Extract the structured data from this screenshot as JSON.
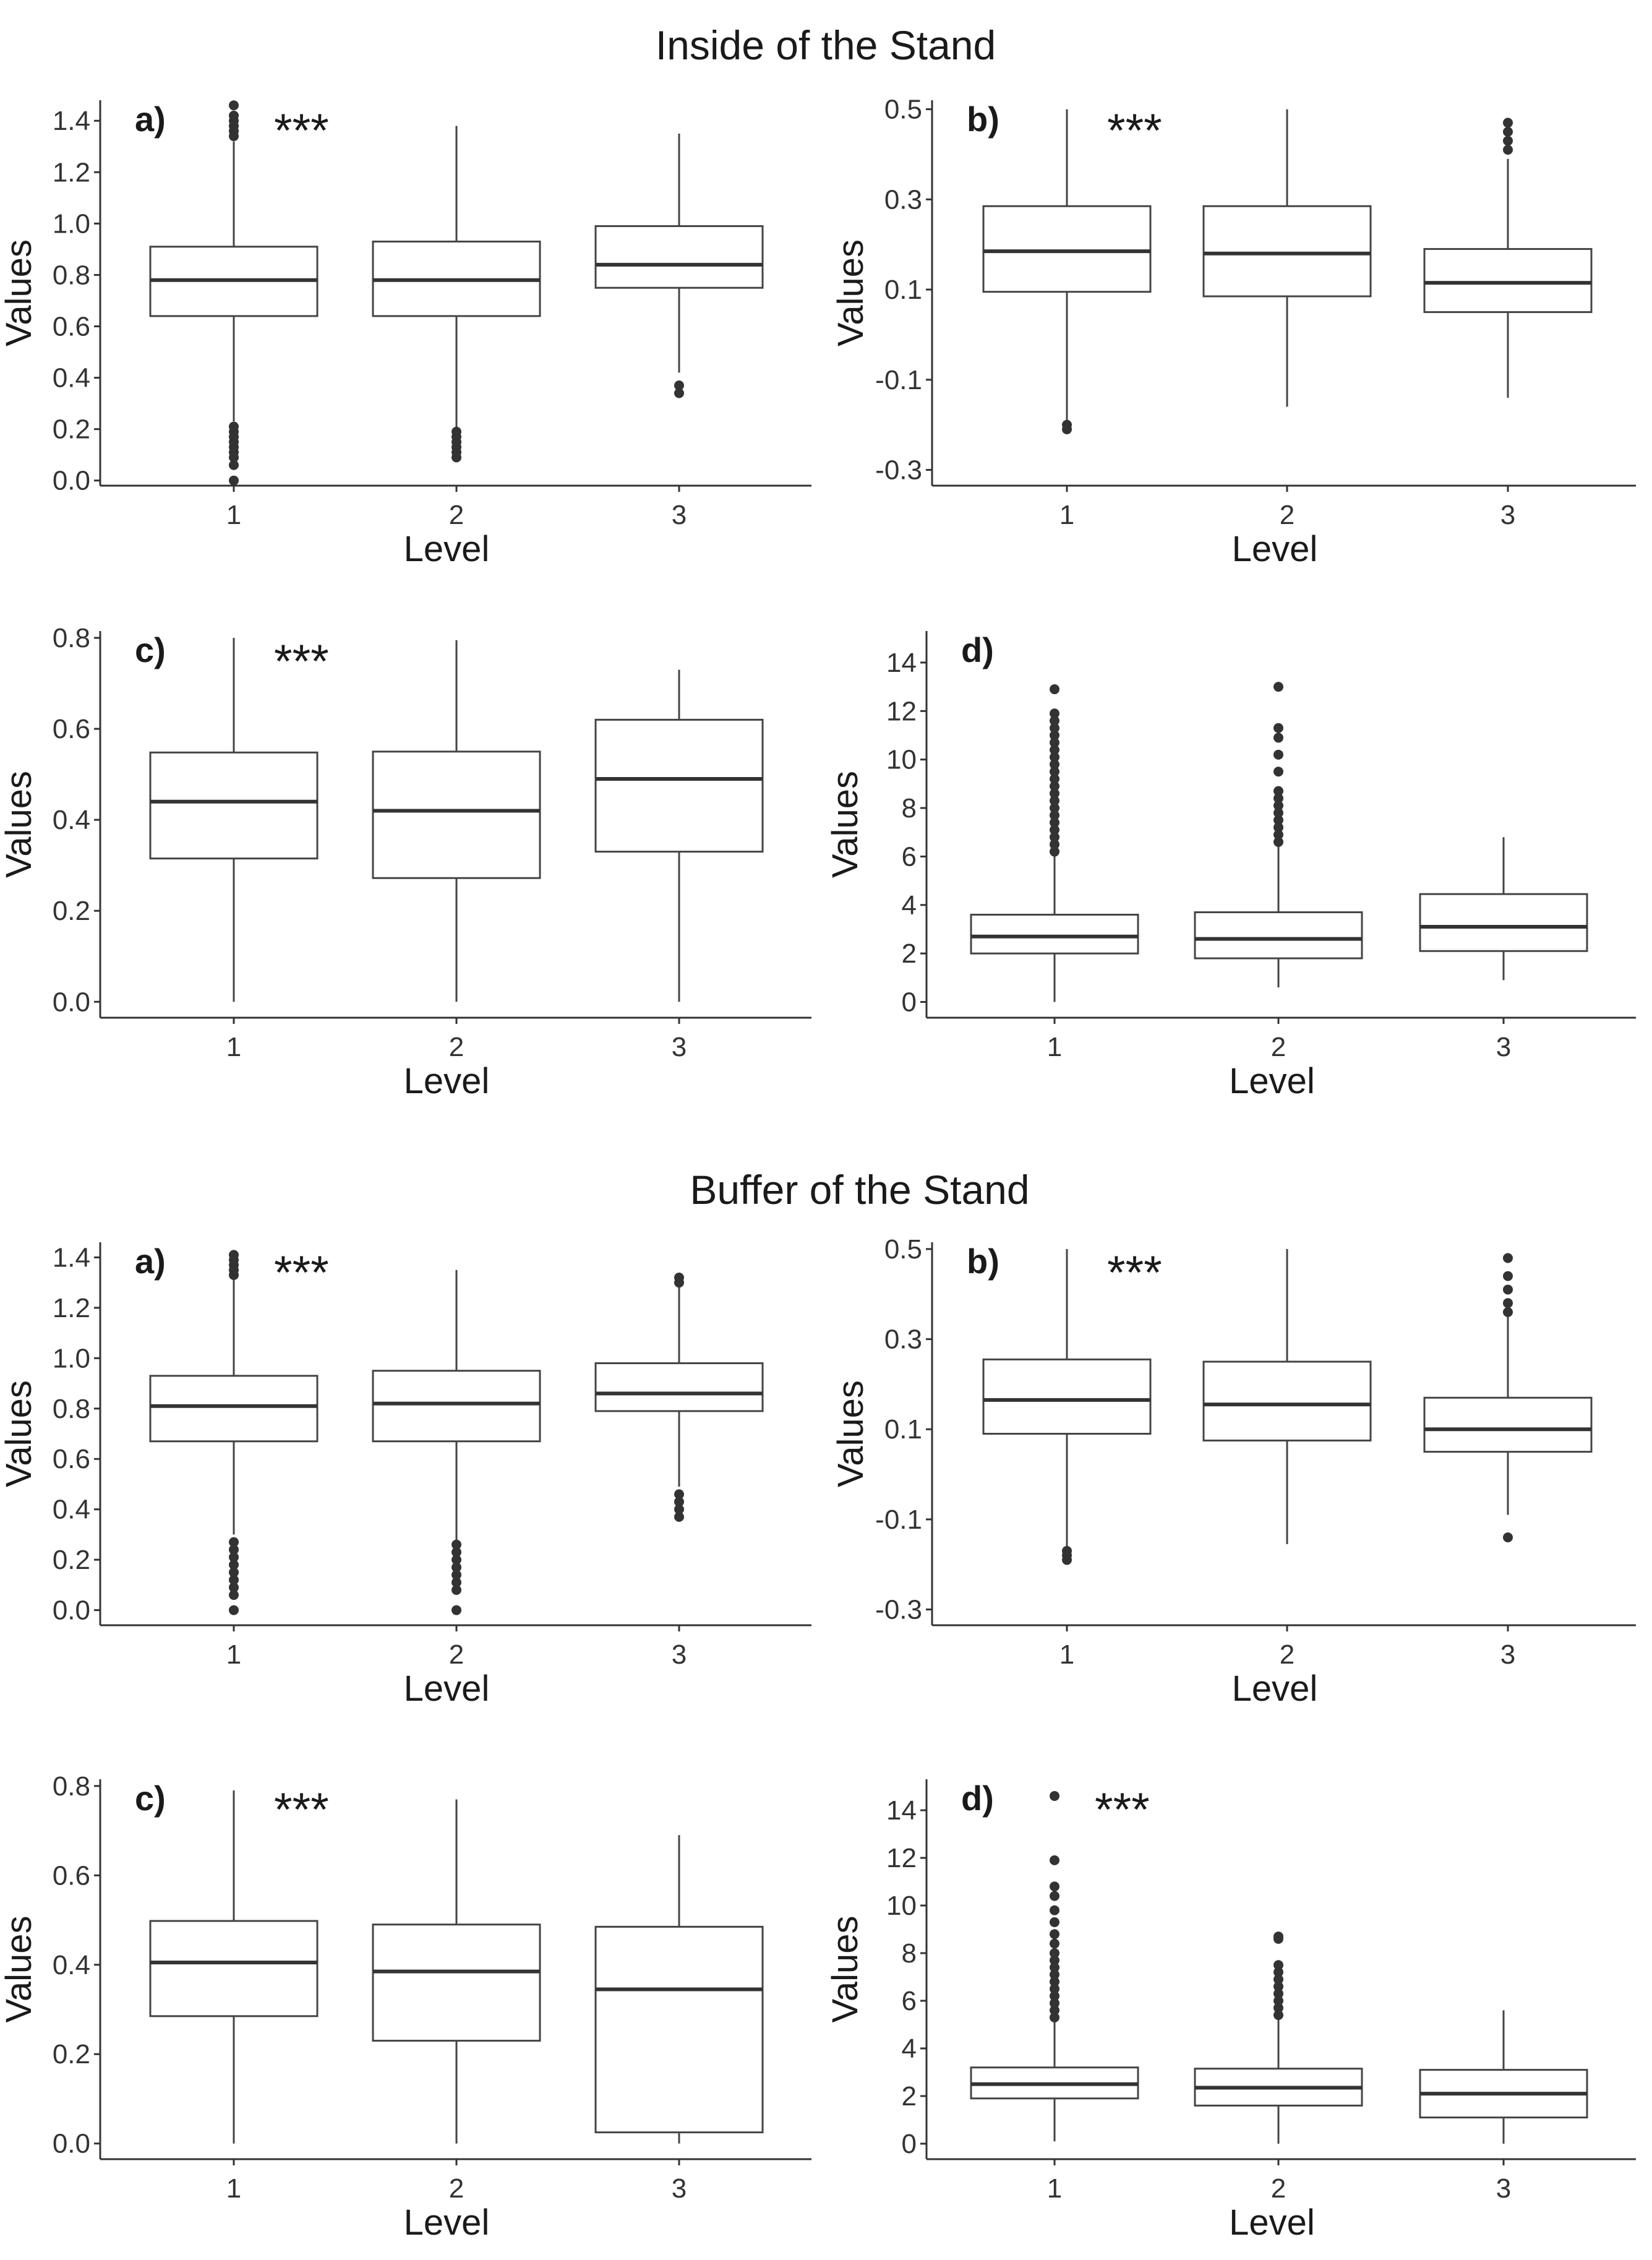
{
  "titles": {
    "inside": "Inside of the Stand",
    "buffer": "Buffer of the Stand"
  },
  "chart_data": [
    {
      "id": "inside-a",
      "section": "Inside of the Stand",
      "type": "boxplot",
      "panel_label": "a)",
      "significance": "***",
      "xlabel": "Level",
      "ylabel": "Values",
      "categories": [
        "1",
        "2",
        "3"
      ],
      "ylim": [
        -0.02,
        1.48
      ],
      "yticks": [
        0.0,
        0.2,
        0.4,
        0.6,
        0.8,
        1.0,
        1.2,
        1.4
      ],
      "ytick_labels": [
        "0.0",
        "0.2",
        "0.4",
        "0.6",
        "0.8",
        "1.0",
        "1.2",
        "1.4"
      ],
      "boxes": [
        {
          "level": "1",
          "whisker_low": 0.23,
          "q1": 0.64,
          "median": 0.78,
          "q3": 0.91,
          "whisker_high": 1.32,
          "outliers": [
            0.0,
            0.06,
            0.09,
            0.11,
            0.13,
            0.15,
            0.17,
            0.19,
            0.21,
            1.34,
            1.36,
            1.38,
            1.4,
            1.42,
            1.46
          ]
        },
        {
          "level": "2",
          "whisker_low": 0.2,
          "q1": 0.64,
          "median": 0.78,
          "q3": 0.93,
          "whisker_high": 1.38,
          "outliers": [
            0.09,
            0.11,
            0.13,
            0.15,
            0.17,
            0.19
          ]
        },
        {
          "level": "3",
          "whisker_low": 0.42,
          "q1": 0.75,
          "median": 0.84,
          "q3": 0.99,
          "whisker_high": 1.35,
          "outliers": [
            0.34,
            0.37
          ]
        }
      ]
    },
    {
      "id": "inside-b",
      "section": "Inside of the Stand",
      "type": "boxplot",
      "panel_label": "b)",
      "significance": "***",
      "xlabel": "Level",
      "ylabel": "Values",
      "categories": [
        "1",
        "2",
        "3"
      ],
      "ylim": [
        -0.335,
        0.52
      ],
      "yticks": [
        -0.3,
        -0.1,
        0.1,
        0.3,
        0.5
      ],
      "ytick_labels": [
        "-0.3",
        "-0.1",
        "0.1",
        "0.3",
        "0.5"
      ],
      "boxes": [
        {
          "level": "1",
          "whisker_low": -0.19,
          "q1": 0.095,
          "median": 0.185,
          "q3": 0.285,
          "whisker_high": 0.5,
          "outliers": [
            -0.2,
            -0.21
          ]
        },
        {
          "level": "2",
          "whisker_low": -0.16,
          "q1": 0.085,
          "median": 0.18,
          "q3": 0.285,
          "whisker_high": 0.5,
          "outliers": []
        },
        {
          "level": "3",
          "whisker_low": -0.14,
          "q1": 0.05,
          "median": 0.115,
          "q3": 0.19,
          "whisker_high": 0.39,
          "outliers": [
            0.41,
            0.43,
            0.45,
            0.47
          ]
        }
      ]
    },
    {
      "id": "inside-c",
      "section": "Inside of the Stand",
      "type": "boxplot",
      "panel_label": "c)",
      "significance": "***",
      "xlabel": "Level",
      "ylabel": "Values",
      "categories": [
        "1",
        "2",
        "3"
      ],
      "ylim": [
        -0.035,
        0.815
      ],
      "yticks": [
        0.0,
        0.2,
        0.4,
        0.6,
        0.8
      ],
      "ytick_labels": [
        "0.0",
        "0.2",
        "0.4",
        "0.6",
        "0.8"
      ],
      "boxes": [
        {
          "level": "1",
          "whisker_low": 0.0,
          "q1": 0.315,
          "median": 0.44,
          "q3": 0.548,
          "whisker_high": 0.8,
          "outliers": []
        },
        {
          "level": "2",
          "whisker_low": 0.0,
          "q1": 0.272,
          "median": 0.42,
          "q3": 0.55,
          "whisker_high": 0.795,
          "outliers": []
        },
        {
          "level": "3",
          "whisker_low": 0.0,
          "q1": 0.33,
          "median": 0.49,
          "q3": 0.62,
          "whisker_high": 0.73,
          "outliers": []
        }
      ]
    },
    {
      "id": "inside-d",
      "section": "Inside of the Stand",
      "type": "boxplot",
      "panel_label": "d)",
      "significance": "",
      "xlabel": "Level",
      "ylabel": "Values",
      "categories": [
        "1",
        "2",
        "3"
      ],
      "ylim": [
        -0.65,
        15.3
      ],
      "yticks": [
        0,
        2,
        4,
        6,
        8,
        10,
        12,
        14
      ],
      "ytick_labels": [
        "0",
        "2",
        "4",
        "6",
        "8",
        "10",
        "12",
        "14"
      ],
      "boxes": [
        {
          "level": "1",
          "whisker_low": 0.0,
          "q1": 2.0,
          "median": 2.7,
          "q3": 3.6,
          "whisker_high": 6.1,
          "outliers": [
            6.2,
            6.5,
            6.8,
            7.1,
            7.4,
            7.7,
            8.0,
            8.3,
            8.6,
            8.9,
            9.2,
            9.5,
            9.8,
            10.1,
            10.4,
            10.7,
            11.0,
            11.3,
            11.6,
            11.9,
            12.9
          ]
        },
        {
          "level": "2",
          "whisker_low": 0.6,
          "q1": 1.8,
          "median": 2.6,
          "q3": 3.7,
          "whisker_high": 6.5,
          "outliers": [
            6.6,
            6.9,
            7.2,
            7.5,
            7.8,
            8.1,
            8.4,
            8.7,
            9.5,
            10.2,
            10.9,
            11.3,
            13.0
          ]
        },
        {
          "level": "3",
          "whisker_low": 0.9,
          "q1": 2.1,
          "median": 3.1,
          "q3": 4.45,
          "whisker_high": 6.8,
          "outliers": []
        }
      ]
    },
    {
      "id": "buffer-a",
      "section": "Buffer of the Stand",
      "type": "boxplot",
      "panel_label": "a)",
      "significance": "***",
      "xlabel": "Level",
      "ylabel": "Values",
      "categories": [
        "1",
        "2",
        "3"
      ],
      "ylim": [
        -0.06,
        1.46
      ],
      "yticks": [
        0.0,
        0.2,
        0.4,
        0.6,
        0.8,
        1.0,
        1.2,
        1.4
      ],
      "ytick_labels": [
        "0.0",
        "0.2",
        "0.4",
        "0.6",
        "0.8",
        "1.0",
        "1.2",
        "1.4"
      ],
      "boxes": [
        {
          "level": "1",
          "whisker_low": 0.3,
          "q1": 0.67,
          "median": 0.81,
          "q3": 0.93,
          "whisker_high": 1.32,
          "outliers": [
            0.0,
            0.06,
            0.09,
            0.12,
            0.15,
            0.18,
            0.21,
            0.24,
            0.27,
            1.33,
            1.35,
            1.37,
            1.39,
            1.41
          ]
        },
        {
          "level": "2",
          "whisker_low": 0.27,
          "q1": 0.67,
          "median": 0.82,
          "q3": 0.95,
          "whisker_high": 1.35,
          "outliers": [
            0.0,
            0.08,
            0.11,
            0.14,
            0.17,
            0.2,
            0.23,
            0.26
          ]
        },
        {
          "level": "3",
          "whisker_low": 0.49,
          "q1": 0.79,
          "median": 0.86,
          "q3": 0.98,
          "whisker_high": 1.29,
          "outliers": [
            0.37,
            0.4,
            0.43,
            0.46,
            1.3,
            1.32
          ]
        }
      ]
    },
    {
      "id": "buffer-b",
      "section": "Buffer of the Stand",
      "type": "boxplot",
      "panel_label": "b)",
      "significance": "***",
      "xlabel": "Level",
      "ylabel": "Values",
      "categories": [
        "1",
        "2",
        "3"
      ],
      "ylim": [
        -0.335,
        0.515
      ],
      "yticks": [
        -0.3,
        -0.1,
        0.1,
        0.3,
        0.5
      ],
      "ytick_labels": [
        "-0.3",
        "-0.1",
        "0.1",
        "0.3",
        "0.5"
      ],
      "boxes": [
        {
          "level": "1",
          "whisker_low": -0.16,
          "q1": 0.09,
          "median": 0.165,
          "q3": 0.255,
          "whisker_high": 0.5,
          "outliers": [
            -0.17,
            -0.18,
            -0.19
          ]
        },
        {
          "level": "2",
          "whisker_low": -0.155,
          "q1": 0.075,
          "median": 0.155,
          "q3": 0.25,
          "whisker_high": 0.5,
          "outliers": []
        },
        {
          "level": "3",
          "whisker_low": -0.09,
          "q1": 0.05,
          "median": 0.1,
          "q3": 0.17,
          "whisker_high": 0.35,
          "outliers": [
            -0.14,
            0.36,
            0.38,
            0.41,
            0.44,
            0.48
          ]
        }
      ]
    },
    {
      "id": "buffer-c",
      "section": "Buffer of the Stand",
      "type": "boxplot",
      "panel_label": "c)",
      "significance": "***",
      "xlabel": "Level",
      "ylabel": "Values",
      "categories": [
        "1",
        "2",
        "3"
      ],
      "ylim": [
        -0.035,
        0.815
      ],
      "yticks": [
        0.0,
        0.2,
        0.4,
        0.6,
        0.8
      ],
      "ytick_labels": [
        "0.0",
        "0.2",
        "0.4",
        "0.6",
        "0.8"
      ],
      "boxes": [
        {
          "level": "1",
          "whisker_low": 0.0,
          "q1": 0.285,
          "median": 0.405,
          "q3": 0.498,
          "whisker_high": 0.79,
          "outliers": []
        },
        {
          "level": "2",
          "whisker_low": 0.0,
          "q1": 0.23,
          "median": 0.385,
          "q3": 0.49,
          "whisker_high": 0.77,
          "outliers": []
        },
        {
          "level": "3",
          "whisker_low": 0.0,
          "q1": 0.025,
          "median": 0.345,
          "q3": 0.485,
          "whisker_high": 0.69,
          "outliers": []
        }
      ]
    },
    {
      "id": "buffer-d",
      "section": "Buffer of the Stand",
      "type": "boxplot",
      "panel_label": "d)",
      "significance": "***",
      "xlabel": "Level",
      "ylabel": "Values",
      "categories": [
        "1",
        "2",
        "3"
      ],
      "ylim": [
        -0.65,
        15.3
      ],
      "yticks": [
        0,
        2,
        4,
        6,
        8,
        10,
        12,
        14
      ],
      "ytick_labels": [
        "0",
        "2",
        "4",
        "6",
        "8",
        "10",
        "12",
        "14"
      ],
      "boxes": [
        {
          "level": "1",
          "whisker_low": 0.1,
          "q1": 1.9,
          "median": 2.5,
          "q3": 3.2,
          "whisker_high": 5.2,
          "outliers": [
            5.3,
            5.6,
            5.9,
            6.2,
            6.5,
            6.8,
            7.1,
            7.4,
            7.7,
            8.0,
            8.4,
            8.8,
            9.3,
            9.8,
            10.4,
            10.8,
            11.9,
            14.6
          ]
        },
        {
          "level": "2",
          "whisker_low": 0.0,
          "q1": 1.6,
          "median": 2.35,
          "q3": 3.15,
          "whisker_high": 5.3,
          "outliers": [
            5.4,
            5.7,
            6.0,
            6.3,
            6.6,
            6.9,
            7.2,
            7.5,
            8.6,
            8.7
          ]
        },
        {
          "level": "3",
          "whisker_low": 0.0,
          "q1": 1.1,
          "median": 2.1,
          "q3": 3.1,
          "whisker_high": 5.6,
          "outliers": []
        }
      ]
    }
  ]
}
